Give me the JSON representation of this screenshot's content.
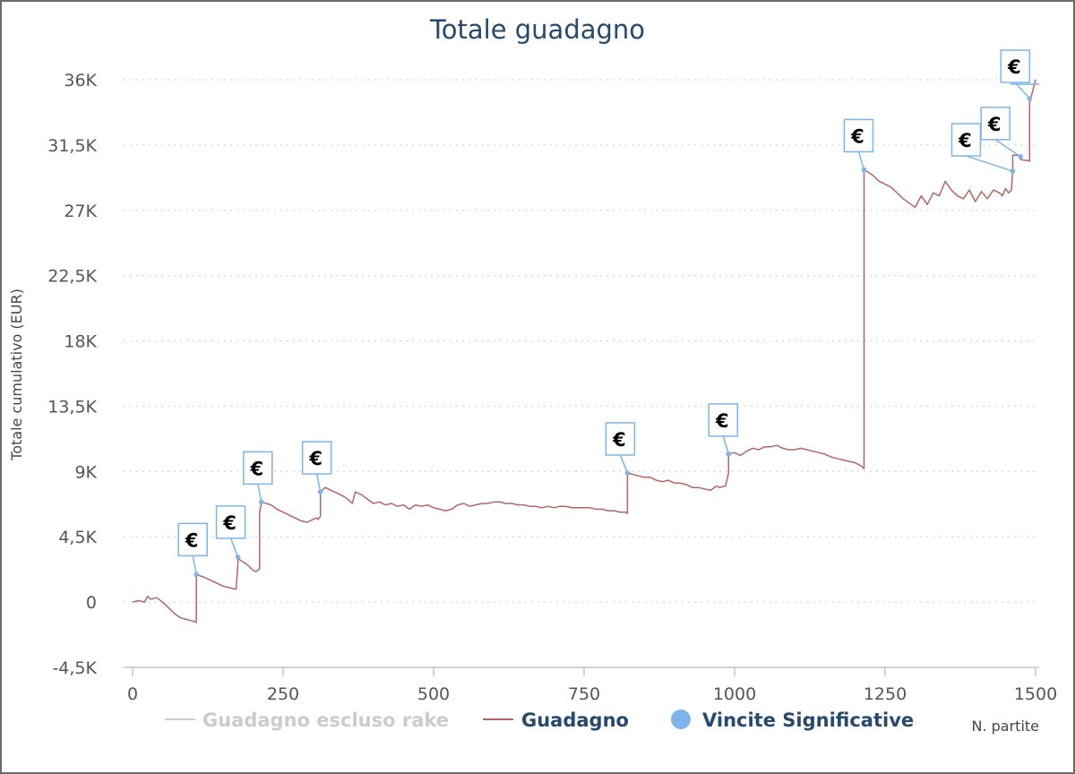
{
  "chart_data": {
    "type": "line",
    "title": "Totale guadagno",
    "xlabel": "N. partite",
    "ylabel": "Totale cumulativo (EUR)",
    "xlim": [
      0,
      1500
    ],
    "ylim": [
      -4500,
      36000
    ],
    "x_ticks": [
      0,
      250,
      500,
      750,
      1000,
      1250,
      1500
    ],
    "x_tick_labels": [
      "0",
      "250",
      "500",
      "750",
      "1000",
      "1250",
      "1500"
    ],
    "y_ticks": [
      -4500,
      0,
      4500,
      9000,
      13500,
      18000,
      22500,
      27000,
      31500,
      36000
    ],
    "y_tick_labels": [
      "-4,5K",
      "0",
      "4,5K",
      "9K",
      "13,5K",
      "18K",
      "22,5K",
      "27K",
      "31,5K",
      "36K"
    ],
    "grid": true,
    "legend_position": "bottom",
    "legend": [
      {
        "name": "Guadagno escluso rake",
        "color": "#cccccc",
        "symbol": "line",
        "visible": false
      },
      {
        "name": "Guadagno",
        "color": "#b56565",
        "symbol": "line",
        "visible": true
      },
      {
        "name": "Vincite Significative",
        "color": "#7cb5ec",
        "symbol": "circle",
        "visible": true
      }
    ],
    "series": [
      {
        "name": "Guadagno",
        "color": "#b56565",
        "x": [
          0,
          10,
          20,
          25,
          30,
          40,
          50,
          60,
          70,
          80,
          90,
          100,
          106,
          106,
          120,
          130,
          140,
          150,
          160,
          170,
          172,
          175,
          175,
          190,
          200,
          205,
          211,
          211,
          214,
          214,
          230,
          240,
          250,
          260,
          270,
          280,
          290,
          300,
          305,
          308,
          312,
          312,
          320,
          330,
          340,
          350,
          360,
          365,
          370,
          380,
          390,
          400,
          410,
          420,
          430,
          440,
          450,
          460,
          470,
          480,
          490,
          500,
          510,
          520,
          530,
          540,
          550,
          560,
          570,
          580,
          590,
          600,
          610,
          620,
          630,
          640,
          650,
          660,
          670,
          680,
          690,
          700,
          710,
          720,
          730,
          740,
          750,
          760,
          770,
          780,
          790,
          800,
          810,
          820,
          822,
          822,
          840,
          850,
          860,
          870,
          880,
          890,
          900,
          910,
          920,
          930,
          940,
          950,
          960,
          970,
          975,
          985,
          990,
          990,
          1000,
          1010,
          1020,
          1030,
          1040,
          1050,
          1060,
          1070,
          1080,
          1090,
          1100,
          1110,
          1120,
          1130,
          1140,
          1150,
          1160,
          1170,
          1180,
          1190,
          1200,
          1210,
          1215,
          1215,
          1230,
          1240,
          1250,
          1260,
          1270,
          1280,
          1290,
          1300,
          1310,
          1320,
          1330,
          1340,
          1350,
          1360,
          1370,
          1380,
          1390,
          1400,
          1410,
          1420,
          1430,
          1440,
          1445,
          1450,
          1455,
          1460,
          1462,
          1462,
          1475,
          1475,
          1490,
          1490,
          1500
        ],
        "y": [
          0,
          100,
          0,
          400,
          200,
          300,
          0,
          -400,
          -800,
          -1100,
          -1200,
          -1300,
          -1400,
          1900,
          1700,
          1500,
          1300,
          1100,
          1000,
          900,
          900,
          2600,
          3000,
          2600,
          2200,
          2100,
          2300,
          6200,
          6800,
          6900,
          6700,
          6400,
          6200,
          6000,
          5800,
          5600,
          5500,
          5700,
          5800,
          5700,
          5900,
          7600,
          7900,
          7700,
          7500,
          7300,
          7000,
          6800,
          7600,
          7400,
          7100,
          6800,
          6900,
          6700,
          6800,
          6600,
          6700,
          6400,
          6700,
          6600,
          6700,
          6500,
          6400,
          6300,
          6400,
          6700,
          6800,
          6600,
          6700,
          6800,
          6800,
          6900,
          6900,
          6800,
          6800,
          6700,
          6700,
          6600,
          6600,
          6500,
          6600,
          6500,
          6600,
          6600,
          6500,
          6500,
          6500,
          6500,
          6400,
          6400,
          6300,
          6300,
          6200,
          6200,
          6100,
          8900,
          8700,
          8600,
          8600,
          8400,
          8300,
          8400,
          8200,
          8200,
          8100,
          7900,
          7900,
          7800,
          7700,
          8000,
          7900,
          8000,
          8900,
          10200,
          10300,
          10100,
          10400,
          10600,
          10500,
          10700,
          10700,
          10800,
          10600,
          10500,
          10500,
          10600,
          10500,
          10400,
          10300,
          10200,
          10000,
          9900,
          9800,
          9700,
          9600,
          9400,
          9200,
          29800,
          29400,
          29000,
          28800,
          28600,
          28200,
          27800,
          27500,
          27200,
          28000,
          27400,
          28200,
          28000,
          29000,
          28400,
          28000,
          27800,
          28400,
          27600,
          28300,
          27800,
          28400,
          28200,
          28000,
          28500,
          28200,
          28400,
          29800,
          30800,
          30800,
          30500,
          30400,
          34400,
          36000
        ]
      },
      {
        "name": "Vincite Significative",
        "color": "#7cb5ec",
        "x": [
          106,
          175,
          214,
          312,
          822,
          990,
          1215,
          1462,
          1475,
          1490
        ],
        "y": [
          1900,
          3100,
          6900,
          7600,
          8900,
          10200,
          29800,
          29700,
          30700,
          34700
        ],
        "labels": [
          "€",
          "€",
          "€",
          "€",
          "€",
          "€",
          "€",
          "€",
          "€",
          "€"
        ]
      }
    ]
  }
}
